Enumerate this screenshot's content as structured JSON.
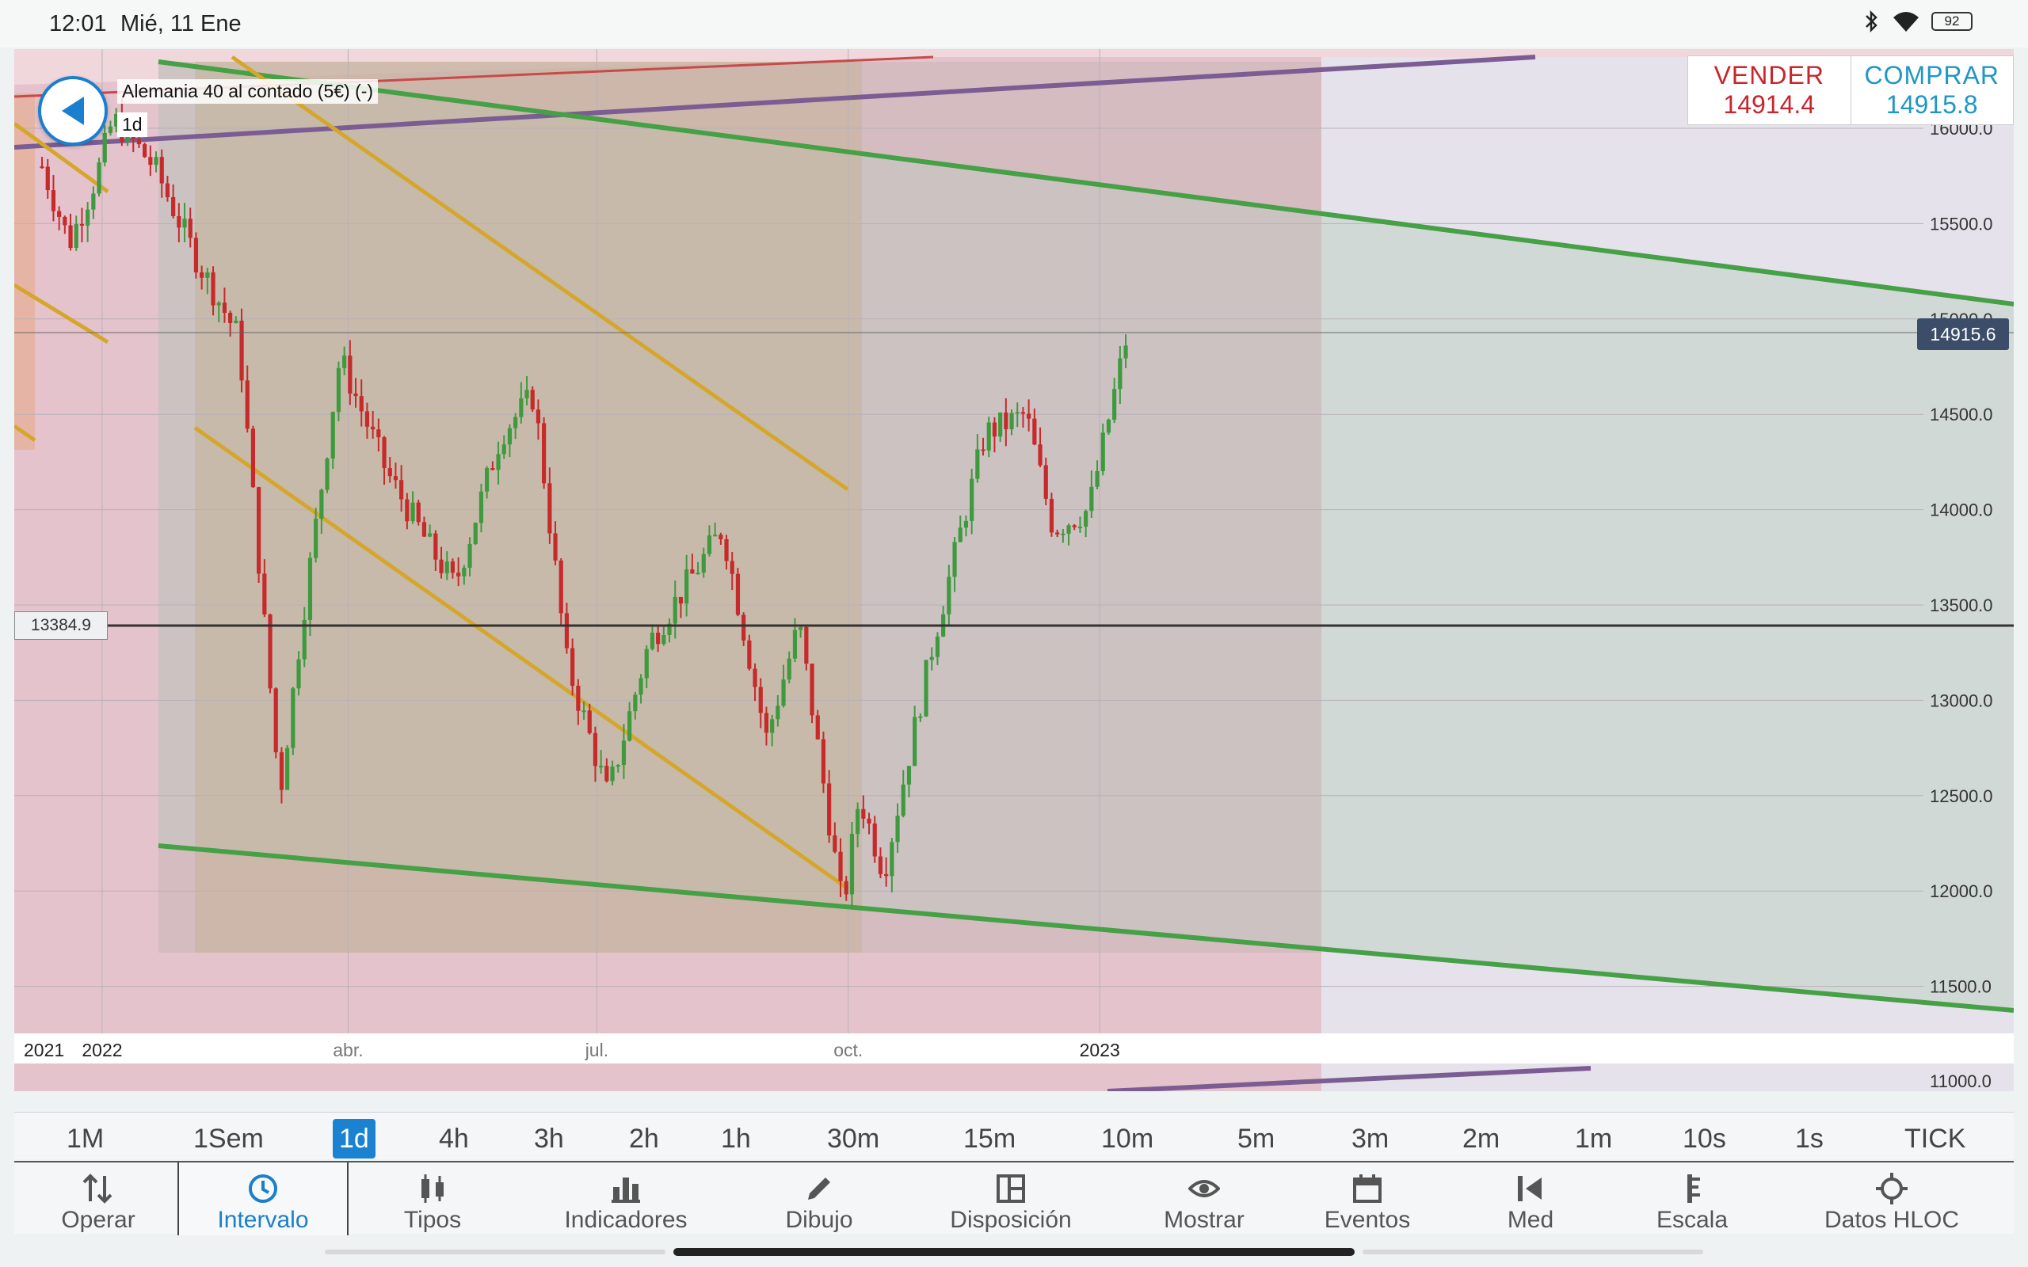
{
  "status_bar": {
    "time": "12:01",
    "date": "Mié, 11 Ene",
    "battery": "92"
  },
  "instrument": {
    "name": "Alemania 40 al contado (5€) (-)",
    "interval": "1d"
  },
  "trade": {
    "sell_label": "VENDER",
    "sell_price": "14914.4",
    "buy_label": "COMPRAR",
    "buy_price": "14915.8"
  },
  "price_tag": "14915.6",
  "hline_tag": "13384.9",
  "colors": {
    "sell": "#c9252b",
    "buy": "#1f96c8",
    "up": "#3f9a3f",
    "down": "#c62a2a",
    "channel": "#4aa24a",
    "fork": "#d4a72c",
    "accent": "#1b82d1"
  },
  "chart_data": {
    "type": "candlestick",
    "x_tick_labels": [
      "2021",
      "2022",
      "abr.",
      "jul.",
      "oct.",
      "2023"
    ],
    "y_tick_labels": [
      "11000.0",
      "11500.0",
      "12000.0",
      "12500.0",
      "13000.0",
      "13500.0",
      "14000.0",
      "14500.0",
      "15000.0",
      "15500.0",
      "16000.0"
    ],
    "ylim": [
      11000,
      16000
    ],
    "last_price": 14915.6,
    "horizontal_line": 13384.9,
    "close_path": [
      {
        "d": "2021-12-10",
        "v": 15800
      },
      {
        "d": "2021-12-20",
        "v": 15400
      },
      {
        "d": "2021-12-30",
        "v": 15750
      },
      {
        "d": "2022-01-05",
        "v": 16050
      },
      {
        "d": "2022-01-20",
        "v": 15800
      },
      {
        "d": "2022-02-05",
        "v": 15300
      },
      {
        "d": "2022-02-20",
        "v": 14900
      },
      {
        "d": "2022-03-07",
        "v": 12500
      },
      {
        "d": "2022-03-15",
        "v": 13400
      },
      {
        "d": "2022-03-29",
        "v": 14800
      },
      {
        "d": "2022-04-15",
        "v": 14200
      },
      {
        "d": "2022-05-01",
        "v": 13800
      },
      {
        "d": "2022-05-10",
        "v": 13600
      },
      {
        "d": "2022-05-27",
        "v": 14400
      },
      {
        "d": "2022-06-08",
        "v": 14600
      },
      {
        "d": "2022-06-20",
        "v": 13200
      },
      {
        "d": "2022-07-05",
        "v": 12500
      },
      {
        "d": "2022-07-20",
        "v": 13300
      },
      {
        "d": "2022-08-16",
        "v": 13900
      },
      {
        "d": "2022-09-01",
        "v": 12800
      },
      {
        "d": "2022-09-13",
        "v": 13400
      },
      {
        "d": "2022-09-29",
        "v": 11900
      },
      {
        "d": "2022-10-05",
        "v": 12500
      },
      {
        "d": "2022-10-14",
        "v": 12100
      },
      {
        "d": "2022-11-01",
        "v": 13300
      },
      {
        "d": "2022-11-20",
        "v": 14400
      },
      {
        "d": "2022-12-05",
        "v": 14500
      },
      {
        "d": "2022-12-15",
        "v": 13900
      },
      {
        "d": "2022-12-28",
        "v": 14000
      },
      {
        "d": "2023-01-11",
        "v": 14915
      }
    ]
  },
  "intervals": [
    "1M",
    "1Sem",
    "1d",
    "4h",
    "3h",
    "2h",
    "1h",
    "30m",
    "15m",
    "10m",
    "5m",
    "3m",
    "2m",
    "1m",
    "10s",
    "1s",
    "TICK"
  ],
  "active_interval": "1d",
  "nav": [
    {
      "label": "Operar",
      "icon": "arrows-updown-icon"
    },
    {
      "label": "Intervalo",
      "icon": "clock-icon"
    },
    {
      "label": "Tipos",
      "icon": "candles-icon"
    },
    {
      "label": "Indicadores",
      "icon": "bar-chart-icon"
    },
    {
      "label": "Dibujo",
      "icon": "pencil-icon"
    },
    {
      "label": "Disposición",
      "icon": "layout-icon"
    },
    {
      "label": "Mostrar",
      "icon": "eye-icon"
    },
    {
      "label": "Eventos",
      "icon": "calendar-icon"
    },
    {
      "label": "Med",
      "icon": "measure-icon"
    },
    {
      "label": "Escala",
      "icon": "scale-icon"
    },
    {
      "label": "Datos HLOC",
      "icon": "crosshair-icon"
    }
  ],
  "active_nav": "Intervalo"
}
